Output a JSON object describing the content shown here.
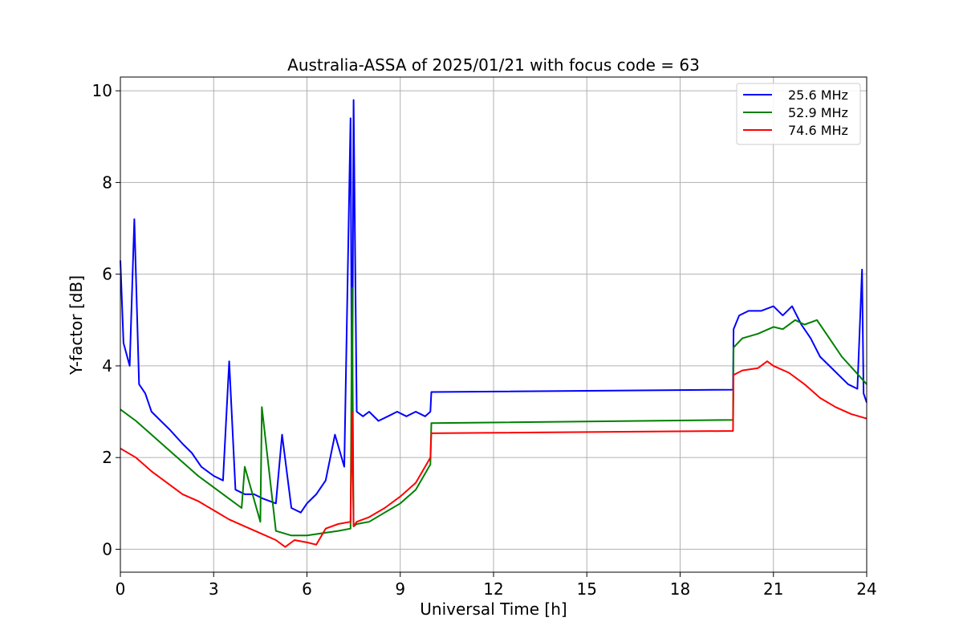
{
  "chart_data": {
    "type": "line",
    "title": "Australia-ASSA of 2025/01/21 with focus code = 63",
    "xlabel": "Universal Time [h]",
    "ylabel": "Y-factor [dB]",
    "xlim": [
      0,
      24
    ],
    "ylim": [
      -0.5,
      10.3
    ],
    "xticks": [
      0,
      3,
      6,
      9,
      12,
      15,
      18,
      21,
      24
    ],
    "yticks": [
      0,
      2,
      4,
      6,
      8,
      10
    ],
    "grid": true,
    "legend_position": "top-right",
    "series": [
      {
        "name": "25.6 MHz",
        "color": "#0000ff",
        "x": [
          0,
          0.1,
          0.3,
          0.45,
          0.6,
          0.8,
          1.0,
          1.3,
          1.6,
          2.0,
          2.3,
          2.6,
          3.0,
          3.3,
          3.5,
          3.7,
          4.0,
          4.3,
          4.6,
          5.0,
          5.2,
          5.5,
          5.8,
          6.0,
          6.3,
          6.6,
          6.9,
          7.2,
          7.4,
          7.45,
          7.5,
          7.6,
          7.8,
          8.0,
          8.3,
          8.6,
          8.9,
          9.2,
          9.5,
          9.8,
          9.97,
          10.0,
          19.7,
          19.72,
          19.9,
          20.2,
          20.6,
          21.0,
          21.3,
          21.6,
          21.9,
          22.2,
          22.5,
          22.8,
          23.1,
          23.4,
          23.7,
          23.85,
          23.9,
          24.0
        ],
        "y": [
          6.3,
          4.5,
          4.0,
          7.2,
          3.6,
          3.4,
          3.0,
          2.8,
          2.6,
          2.3,
          2.1,
          1.8,
          1.6,
          1.5,
          4.1,
          1.3,
          1.2,
          1.2,
          1.1,
          1.0,
          2.5,
          0.9,
          0.8,
          1.0,
          1.2,
          1.5,
          2.5,
          1.8,
          9.4,
          2.4,
          9.8,
          3.0,
          2.9,
          3.0,
          2.8,
          2.9,
          3.0,
          2.9,
          3.0,
          2.9,
          3.0,
          3.43,
          3.48,
          4.8,
          5.1,
          5.2,
          5.2,
          5.3,
          5.1,
          5.3,
          4.9,
          4.6,
          4.2,
          4.0,
          3.8,
          3.6,
          3.5,
          6.1,
          3.4,
          3.2
        ]
      },
      {
        "name": "52.9 MHz",
        "color": "#008000",
        "x": [
          0,
          0.5,
          1.0,
          1.5,
          2.0,
          2.5,
          3.0,
          3.5,
          3.9,
          4.0,
          4.5,
          4.55,
          5.0,
          5.5,
          6.0,
          6.5,
          7.0,
          7.4,
          7.45,
          7.5,
          7.6,
          8.0,
          8.5,
          9.0,
          9.5,
          9.97,
          10.0,
          19.7,
          19.72,
          20.0,
          20.5,
          21.0,
          21.3,
          21.7,
          22.0,
          22.4,
          22.8,
          23.2,
          23.6,
          24.0
        ],
        "y": [
          3.05,
          2.8,
          2.5,
          2.2,
          1.9,
          1.6,
          1.35,
          1.1,
          0.9,
          1.8,
          0.6,
          3.1,
          0.4,
          0.3,
          0.3,
          0.35,
          0.4,
          0.45,
          5.7,
          0.5,
          0.55,
          0.6,
          0.8,
          1.0,
          1.3,
          1.85,
          2.75,
          2.82,
          4.4,
          4.6,
          4.7,
          4.85,
          4.8,
          5.0,
          4.9,
          5.0,
          4.6,
          4.2,
          3.9,
          3.6
        ]
      },
      {
        "name": "74.6 MHz",
        "color": "#ff0000",
        "x": [
          0,
          0.5,
          1.0,
          1.5,
          2.0,
          2.5,
          3.0,
          3.5,
          4.0,
          4.5,
          5.0,
          5.3,
          5.6,
          6.0,
          6.3,
          6.6,
          7.0,
          7.4,
          7.45,
          7.5,
          7.6,
          8.0,
          8.5,
          9.0,
          9.5,
          9.97,
          10.0,
          19.7,
          19.72,
          20.0,
          20.5,
          20.8,
          21.0,
          21.5,
          22.0,
          22.5,
          23.0,
          23.5,
          24.0
        ],
        "y": [
          2.2,
          2.0,
          1.7,
          1.45,
          1.2,
          1.05,
          0.85,
          0.65,
          0.5,
          0.35,
          0.2,
          0.05,
          0.2,
          0.15,
          0.1,
          0.45,
          0.55,
          0.6,
          3.0,
          0.5,
          0.6,
          0.7,
          0.9,
          1.15,
          1.45,
          2.0,
          2.53,
          2.58,
          3.8,
          3.9,
          3.95,
          4.1,
          4.0,
          3.85,
          3.6,
          3.3,
          3.1,
          2.95,
          2.85
        ]
      }
    ]
  }
}
